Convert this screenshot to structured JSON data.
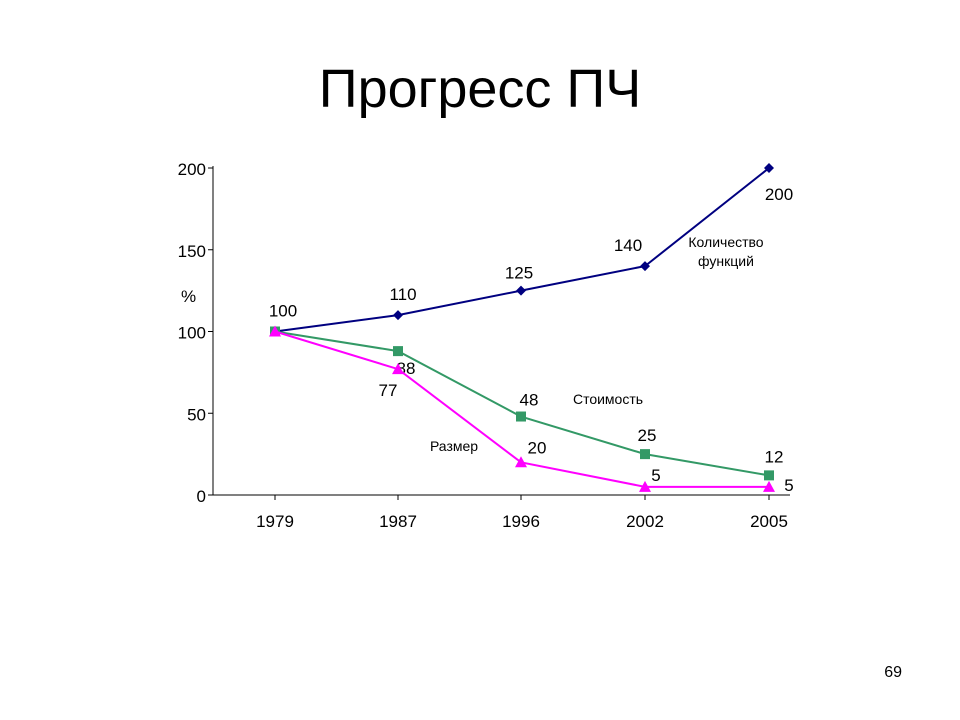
{
  "slide": {
    "title": "Прогресс ПЧ",
    "page_number": "69"
  },
  "chart_data": {
    "type": "line",
    "categories": [
      "1979",
      "1987",
      "1996",
      "2002",
      "2005"
    ],
    "ylabel": "%",
    "ylim": [
      0,
      200
    ],
    "yticks": [
      0,
      50,
      100,
      150,
      200
    ],
    "grid": false,
    "series": [
      {
        "name": "Количество функций",
        "name_lines": [
          "Количество",
          "функций"
        ],
        "values": [
          100,
          110,
          125,
          140,
          200
        ],
        "color": "#000080",
        "marker": "diamond"
      },
      {
        "name": "Стоимость",
        "name_lines": [
          "Стоимость"
        ],
        "values": [
          100,
          88,
          48,
          25,
          12
        ],
        "color": "#339966",
        "marker": "square"
      },
      {
        "name": "Размер",
        "name_lines": [
          "Размер"
        ],
        "values": [
          100,
          77,
          20,
          5,
          5
        ],
        "color": "#FF00FF",
        "marker": "triangle"
      }
    ]
  }
}
